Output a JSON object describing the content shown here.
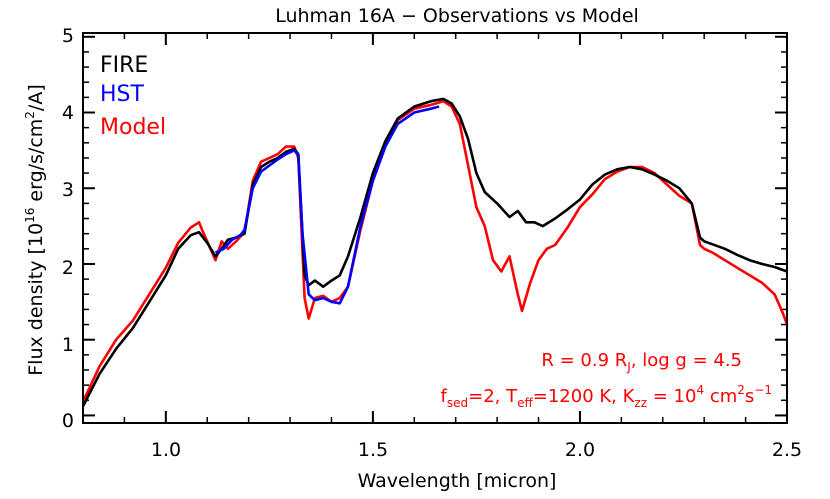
{
  "chart_data": {
    "type": "line",
    "title": "Luhman 16A − Observations vs Model",
    "xlabel": "Wavelength [micron]",
    "ylabel_parts": {
      "pre": "Flux density [10",
      "exp": "16",
      "mid": " erg/s/cm",
      "exp2": "2",
      "post": "/A]"
    },
    "xlim": [
      0.8,
      2.5
    ],
    "ylim": [
      -0.1,
      5.05
    ],
    "x_ticks": [
      {
        "value": 1.0,
        "label": "1.0"
      },
      {
        "value": 1.5,
        "label": "1.5"
      },
      {
        "value": 2.0,
        "label": "2.0"
      },
      {
        "value": 2.5,
        "label": "2.5"
      }
    ],
    "y_ticks": [
      {
        "value": 0,
        "label": "0"
      },
      {
        "value": 1,
        "label": "1"
      },
      {
        "value": 2,
        "label": "2"
      },
      {
        "value": 3,
        "label": "3"
      },
      {
        "value": 4,
        "label": "4"
      },
      {
        "value": 5,
        "label": "5"
      }
    ],
    "x_minor_step": 0.1,
    "y_minor_step": 0.2,
    "legend_placement": "top-left",
    "series": [
      {
        "name": "FIRE",
        "color": "#000000",
        "x": [
          0.8,
          0.84,
          0.88,
          0.92,
          0.96,
          1.0,
          1.03,
          1.06,
          1.08,
          1.1,
          1.12,
          1.135,
          1.15,
          1.17,
          1.19,
          1.21,
          1.23,
          1.25,
          1.27,
          1.29,
          1.31,
          1.32,
          1.335,
          1.345,
          1.36,
          1.38,
          1.4,
          1.42,
          1.44,
          1.47,
          1.5,
          1.53,
          1.56,
          1.6,
          1.64,
          1.67,
          1.69,
          1.71,
          1.73,
          1.75,
          1.77,
          1.8,
          1.83,
          1.85,
          1.87,
          1.89,
          1.91,
          1.94,
          1.97,
          2.0,
          2.03,
          2.06,
          2.09,
          2.12,
          2.15,
          2.18,
          2.21,
          2.24,
          2.27,
          2.29,
          2.3,
          2.32,
          2.35,
          2.38,
          2.41,
          2.44,
          2.47,
          2.5
        ],
        "y": [
          0.12,
          0.55,
          0.88,
          1.15,
          1.5,
          1.85,
          2.2,
          2.38,
          2.42,
          2.28,
          2.1,
          2.2,
          2.32,
          2.35,
          2.4,
          3.05,
          3.28,
          3.35,
          3.4,
          3.48,
          3.52,
          3.45,
          1.85,
          1.72,
          1.78,
          1.7,
          1.78,
          1.85,
          2.1,
          2.62,
          3.2,
          3.62,
          3.92,
          4.08,
          4.15,
          4.18,
          4.12,
          3.95,
          3.65,
          3.2,
          2.95,
          2.8,
          2.62,
          2.7,
          2.55,
          2.55,
          2.5,
          2.6,
          2.72,
          2.85,
          3.05,
          3.18,
          3.25,
          3.28,
          3.25,
          3.18,
          3.1,
          3.0,
          2.8,
          2.35,
          2.3,
          2.26,
          2.2,
          2.12,
          2.05,
          2.0,
          1.96,
          1.9
        ]
      },
      {
        "name": "HST",
        "color": "#0000ff",
        "x": [
          1.12,
          1.14,
          1.16,
          1.18,
          1.19,
          1.21,
          1.23,
          1.25,
          1.27,
          1.29,
          1.31,
          1.32,
          1.33,
          1.345,
          1.36,
          1.38,
          1.4,
          1.42,
          1.44,
          1.47,
          1.5,
          1.53,
          1.56,
          1.6,
          1.64,
          1.66
        ],
        "y": [
          2.15,
          2.2,
          2.32,
          2.38,
          2.45,
          3.0,
          3.22,
          3.3,
          3.38,
          3.45,
          3.5,
          3.44,
          2.4,
          1.6,
          1.52,
          1.55,
          1.5,
          1.48,
          1.7,
          2.5,
          3.1,
          3.55,
          3.85,
          4.0,
          4.05,
          4.08
        ]
      },
      {
        "name": "Model",
        "color": "#ff0000",
        "x": [
          0.8,
          0.84,
          0.88,
          0.92,
          0.96,
          1.0,
          1.03,
          1.06,
          1.08,
          1.09,
          1.1,
          1.12,
          1.135,
          1.15,
          1.17,
          1.19,
          1.21,
          1.23,
          1.25,
          1.27,
          1.29,
          1.31,
          1.32,
          1.335,
          1.345,
          1.36,
          1.38,
          1.4,
          1.42,
          1.44,
          1.47,
          1.5,
          1.53,
          1.56,
          1.6,
          1.64,
          1.67,
          1.69,
          1.71,
          1.73,
          1.75,
          1.77,
          1.79,
          1.81,
          1.83,
          1.85,
          1.86,
          1.88,
          1.9,
          1.92,
          1.94,
          1.97,
          2.0,
          2.03,
          2.06,
          2.09,
          2.12,
          2.15,
          2.18,
          2.21,
          2.24,
          2.27,
          2.29,
          2.3,
          2.32,
          2.35,
          2.38,
          2.41,
          2.44,
          2.47,
          2.49,
          2.5
        ],
        "y": [
          0.18,
          0.65,
          1.0,
          1.25,
          1.6,
          1.95,
          2.28,
          2.48,
          2.55,
          2.42,
          2.3,
          2.05,
          2.3,
          2.2,
          2.3,
          2.42,
          3.1,
          3.35,
          3.4,
          3.45,
          3.55,
          3.55,
          3.4,
          1.55,
          1.28,
          1.55,
          1.58,
          1.5,
          1.55,
          1.7,
          2.45,
          3.1,
          3.55,
          3.9,
          4.05,
          4.1,
          4.15,
          4.08,
          3.85,
          3.3,
          2.75,
          2.5,
          2.05,
          1.9,
          2.1,
          1.6,
          1.38,
          1.75,
          2.05,
          2.2,
          2.25,
          2.48,
          2.75,
          2.92,
          3.12,
          3.22,
          3.28,
          3.28,
          3.2,
          3.05,
          2.9,
          2.8,
          2.25,
          2.2,
          2.15,
          2.05,
          1.95,
          1.85,
          1.75,
          1.6,
          1.35,
          1.2
        ]
      }
    ],
    "annotations": {
      "line1": {
        "a": "R = 0.9 R",
        "a_sub": "J",
        "b": ", log g = 4.5"
      },
      "line2": {
        "a": "f",
        "a_sub": "sed",
        "b": "=2, T",
        "b_sub": "eff",
        "c": "=1200 K, K",
        "c_sub": "zz",
        "d": " = 10",
        "d_sup": "4",
        "e": " cm",
        "e_sup": "2",
        "f": "s",
        "f_sup": "−1"
      },
      "color": "#ff0000"
    }
  }
}
